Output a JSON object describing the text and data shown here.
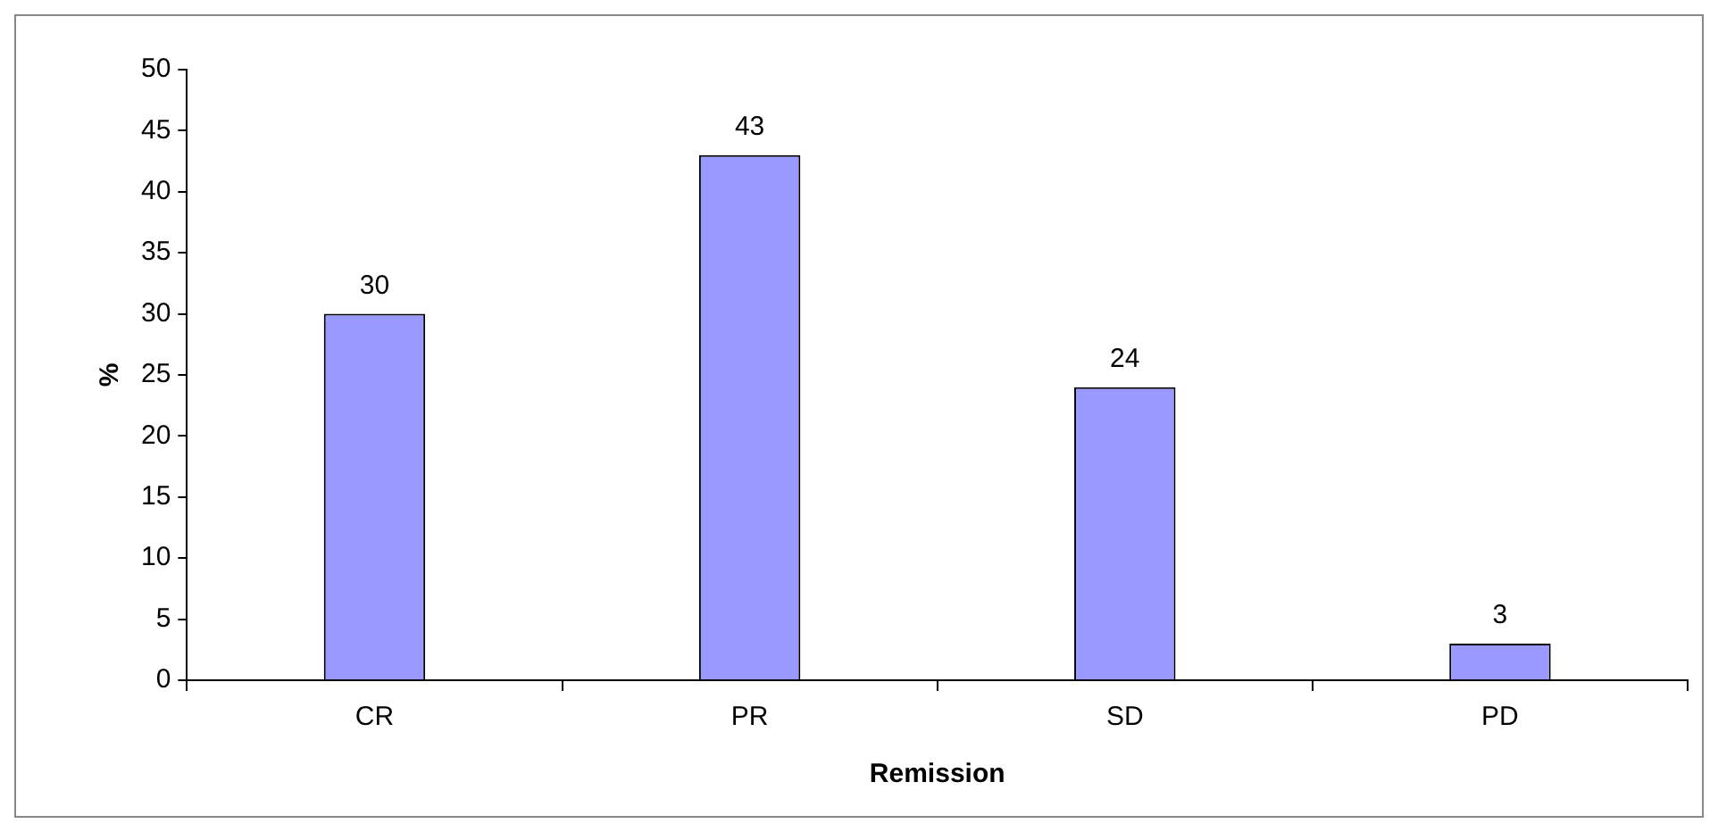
{
  "chart_data": {
    "type": "bar",
    "xlabel": "Remission",
    "ylabel": "%",
    "categories": [
      "CR",
      "PR",
      "SD",
      "PD"
    ],
    "values": [
      30,
      43,
      24,
      3
    ],
    "color": "#9999ff",
    "ylim": [
      0,
      50
    ],
    "yticks": [
      0,
      5,
      10,
      15,
      20,
      25,
      30,
      35,
      40,
      45,
      50
    ],
    "data_labels": true
  }
}
